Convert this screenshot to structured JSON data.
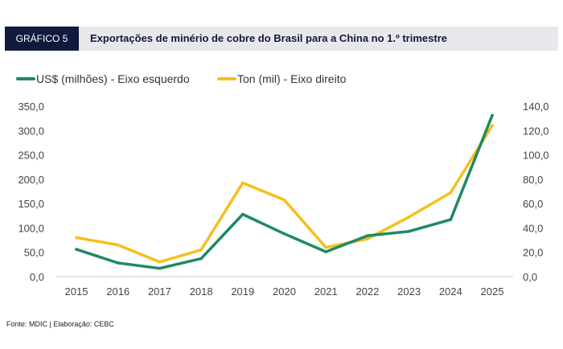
{
  "header": {
    "tag": "GRÁFICO 5",
    "title": "Exportações de minério de cobre do Brasil para a China no 1.º trimestre"
  },
  "source": "Fonte: MDIC | Elaboração: CEBC",
  "chart_data": {
    "type": "line",
    "categories": [
      "2015",
      "2016",
      "2017",
      "2018",
      "2019",
      "2020",
      "2021",
      "2022",
      "2023",
      "2024",
      "2025"
    ],
    "series": [
      {
        "name": "US$ (milhões) - Eixo esquerdo",
        "axis": "left",
        "color": "#1e8a63",
        "values": [
          56,
          28,
          17,
          37,
          128,
          88,
          51,
          84,
          93,
          117,
          331
        ]
      },
      {
        "name": "Ton (mil) - Eixo direito",
        "axis": "right",
        "color": "#f5c01c",
        "values": [
          32,
          26,
          12,
          22,
          77,
          63,
          24,
          31,
          49,
          69,
          124
        ]
      }
    ],
    "left_axis": {
      "min": 0,
      "max": 350,
      "step": 50,
      "tick_labels": [
        "0,0",
        "50,0",
        "100,0",
        "150,0",
        "200,0",
        "250,0",
        "300,0",
        "350,0"
      ]
    },
    "right_axis": {
      "min": 0,
      "max": 140,
      "step": 20,
      "tick_labels": [
        "0,0",
        "20,0",
        "40,0",
        "60,0",
        "80,0",
        "100,0",
        "120,0",
        "140,0"
      ]
    },
    "grid": false,
    "legend_position": "top-left"
  }
}
